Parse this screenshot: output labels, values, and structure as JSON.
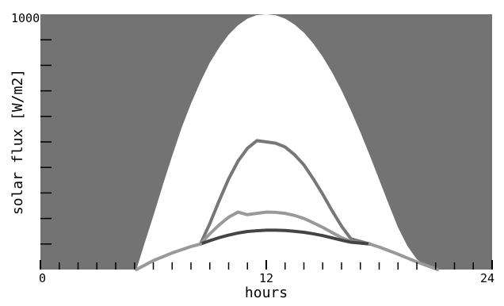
{
  "chart_data": {
    "type": "area",
    "title": "",
    "xlabel": "hours",
    "ylabel": "solar flux [W/m2]",
    "xlim": [
      0,
      24
    ],
    "ylim": [
      0,
      1000
    ],
    "x_ticks": [
      0,
      12,
      24
    ],
    "x_minor_ticks": [
      1,
      2,
      3,
      4,
      5,
      6,
      7,
      8,
      9,
      10,
      11,
      13,
      14,
      15,
      16,
      17,
      18,
      19,
      20,
      21,
      22,
      23
    ],
    "y_tick_label": "1000",
    "y_minor_ticks": [
      100,
      200,
      300,
      400,
      500,
      600,
      700,
      800,
      900
    ],
    "grid": false,
    "background_color": "#737373",
    "series": [
      {
        "style": "filled",
        "color": "#ffffff",
        "x": [
          5.1,
          5.5,
          6,
          6.5,
          7,
          7.5,
          8,
          8.5,
          9,
          9.5,
          10,
          10.5,
          11,
          11.5,
          12,
          12.5,
          13,
          13.5,
          14,
          14.5,
          15,
          15.5,
          16,
          16.5,
          17,
          17.5,
          18,
          18.5,
          19,
          19.5,
          20,
          20.5,
          21.1
        ],
        "values": [
          0,
          95,
          210,
          330,
          445,
          555,
          650,
          735,
          810,
          870,
          920,
          957,
          983,
          997,
          1000,
          996,
          983,
          960,
          928,
          885,
          833,
          772,
          702,
          623,
          538,
          447,
          352,
          257,
          165,
          92,
          40,
          15,
          0
        ]
      },
      {
        "style": "line",
        "color": "#777777",
        "x": [
          8.5,
          9,
          9.5,
          10,
          10.5,
          11,
          11.5,
          12,
          12.5,
          13,
          13.5,
          14,
          14.5,
          15,
          15.5,
          16,
          16.5,
          17.5
        ],
        "values": [
          100,
          180,
          270,
          355,
          425,
          475,
          505,
          500,
          495,
          480,
          450,
          410,
          355,
          295,
          230,
          170,
          120,
          100
        ]
      },
      {
        "style": "line",
        "color": "#999999",
        "x": [
          8.5,
          9,
          9.5,
          10,
          10.5,
          11,
          11.5,
          12,
          12.5,
          13,
          13.5,
          14,
          14.5,
          15,
          15.5,
          16,
          16.5,
          17.5
        ],
        "values": [
          100,
          140,
          175,
          205,
          225,
          215,
          220,
          225,
          224,
          220,
          212,
          200,
          183,
          165,
          145,
          125,
          110,
          100
        ]
      },
      {
        "style": "line",
        "color": "#444444",
        "x": [
          8.5,
          9,
          9.5,
          10,
          10.5,
          11,
          11.5,
          12,
          12.5,
          13,
          13.5,
          14,
          14.5,
          15,
          15.5,
          16,
          16.5,
          17.5
        ],
        "values": [
          100,
          113,
          125,
          135,
          143,
          149,
          152,
          154,
          154,
          153,
          150,
          146,
          140,
          133,
          124,
          115,
          107,
          100
        ]
      },
      {
        "style": "line",
        "color": "#999999",
        "x": [
          5.1,
          6,
          7,
          8,
          8.5
        ],
        "values": [
          0,
          35,
          65,
          90,
          100
        ]
      },
      {
        "style": "line",
        "color": "#999999",
        "x": [
          17.5,
          18,
          19,
          20,
          21.1
        ],
        "values": [
          100,
          88,
          60,
          30,
          0
        ]
      }
    ]
  }
}
